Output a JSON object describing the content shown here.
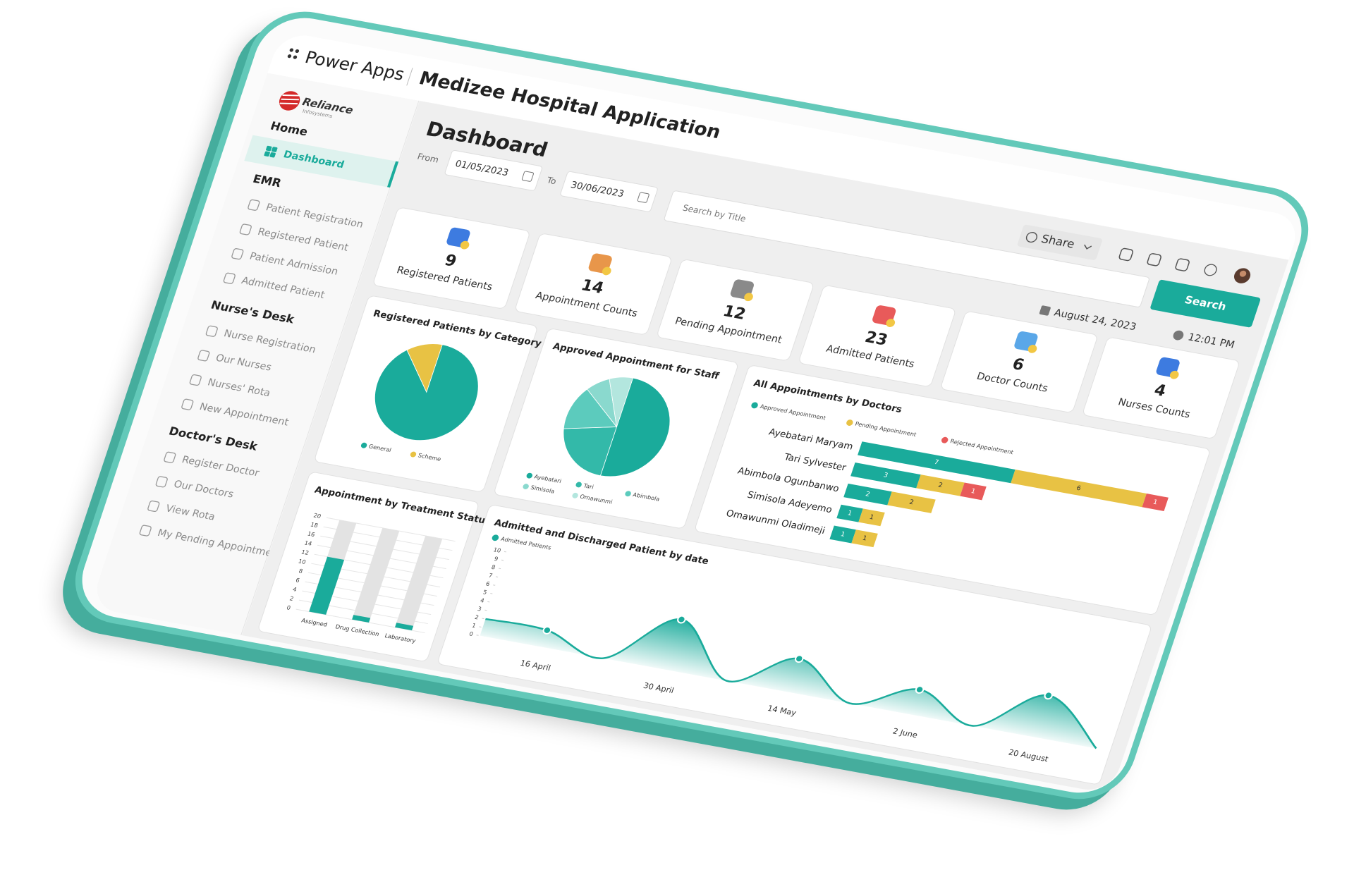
{
  "header": {
    "app": "Power Apps",
    "title": "Medizee Hospital Application"
  },
  "logo": {
    "name": "Reliance",
    "tagline": "Infosystems"
  },
  "sidebar": [
    {
      "heading": "Home",
      "items": [
        "Dashboard"
      ]
    },
    {
      "heading": "EMR",
      "items": [
        "Patient Registration",
        "Registered Patient",
        "Patient Admission",
        "Admitted Patient"
      ]
    },
    {
      "heading": "Nurse's Desk",
      "items": [
        "Nurse Registration",
        "Our Nurses",
        "Nurses' Rota",
        "New Appointment"
      ]
    },
    {
      "heading": "Doctor's Desk",
      "items": [
        "Register Doctor",
        "Our Doctors",
        "View Rota",
        "My Pending Appointment"
      ]
    }
  ],
  "toolbar": {
    "page_title": "Dashboard",
    "from_label": "From",
    "from_date": "01/05/2023",
    "to_label": "To",
    "to_date": "30/06/2023",
    "search_placeholder": "Search by Title",
    "search_button": "Search",
    "share": "Share",
    "date": "August 24, 2023",
    "time": "12:01 PM"
  },
  "kpis": [
    {
      "value": 9,
      "label": "Registered Patients"
    },
    {
      "value": 14,
      "label": "Appointment Counts"
    },
    {
      "value": 12,
      "label": "Pending Appointment"
    },
    {
      "value": 23,
      "label": "Admitted Patients"
    },
    {
      "value": 6,
      "label": "Doctor Counts"
    },
    {
      "value": 4,
      "label": "Nurses Counts"
    }
  ],
  "chart_data": [
    {
      "type": "pie",
      "title": "Registered Patients by Category",
      "categories": [
        "General",
        "Scheme"
      ],
      "values": [
        8,
        1
      ],
      "colors": [
        "#1aab9b",
        "#e8c244"
      ]
    },
    {
      "type": "pie",
      "title": "Approved Appointment for Staff",
      "categories": [
        "Ayebatari",
        "Tari",
        "Abimbola",
        "Simisola",
        "Omawunmi"
      ],
      "values": [
        7,
        3,
        2,
        1,
        1
      ],
      "colors": [
        "#1aab9b",
        "#33b9a9",
        "#5ccbbd",
        "#8ad9ce",
        "#b3e6de"
      ]
    },
    {
      "type": "bar",
      "orientation": "horizontal",
      "stacked": true,
      "title": "All Appointments by Doctors",
      "categories": [
        "Ayebatari Maryam",
        "Tari Sylvester",
        "Abimbola Ogunbanwo",
        "Simisola Adeyemo",
        "Omawunmi Oladimeji"
      ],
      "series": [
        {
          "name": "Approved Appointment",
          "color": "#1aab9b",
          "values": [
            7,
            3,
            2,
            1,
            1
          ]
        },
        {
          "name": "Pending Appointment",
          "color": "#e8c244",
          "values": [
            6,
            2,
            2,
            1,
            1
          ]
        },
        {
          "name": "Rejected Appointment",
          "color": "#e85a5a",
          "values": [
            1,
            1,
            null,
            null,
            null
          ]
        }
      ]
    },
    {
      "type": "bar",
      "title": "Appointment by Treatment Status",
      "categories": [
        "Assigned",
        "Drug Collection",
        "Laboratory"
      ],
      "values": [
        12,
        1,
        1
      ],
      "color": "#1aab9b",
      "track_color": "#e3e3e3",
      "ylim": [
        0,
        20
      ],
      "yticks": [
        0,
        2,
        4,
        6,
        8,
        10,
        12,
        14,
        16,
        18,
        20
      ],
      "grid": true
    },
    {
      "type": "area",
      "title": "Admitted and Discharged Patient by date",
      "categories": [
        null,
        "16 April",
        null,
        "30 April",
        null,
        "14 May",
        null,
        "2 June",
        null,
        "20 August",
        null
      ],
      "series": [
        {
          "name": "Admitted Patients",
          "color": "#1aab9b",
          "values": [
            2,
            2,
            0,
            6,
            0,
            4,
            0,
            3,
            0,
            5,
            0
          ]
        }
      ],
      "ylim": [
        0,
        10
      ],
      "yticks": [
        0,
        1,
        2,
        3,
        4,
        5,
        6,
        7,
        8,
        9,
        10
      ]
    }
  ]
}
